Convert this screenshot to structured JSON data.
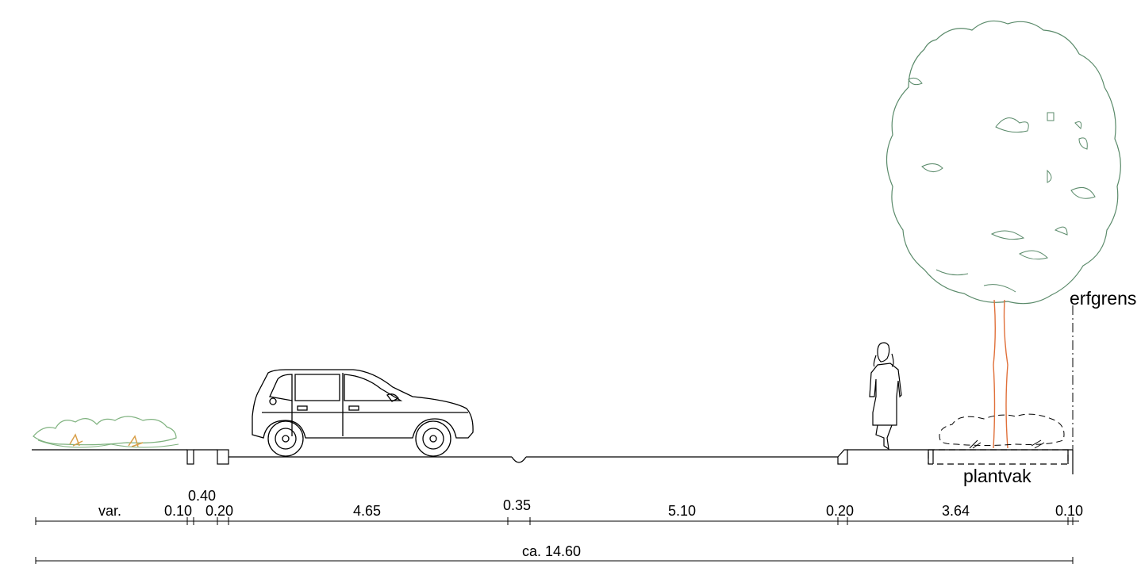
{
  "labels": {
    "erfgrens": "erfgrens",
    "plantvak": "plantvak"
  },
  "dimensions": {
    "var": "var.",
    "d010a": "0.10",
    "d040": "0.40",
    "d020a": "0.20",
    "d465": "4.65",
    "d035": "0.35",
    "d510": "5.10",
    "d020b": "0.20",
    "d364": "3.64",
    "d010b": "0.10",
    "total": "ca. 14.60"
  },
  "colors": {
    "line": "#000000",
    "tree_canopy": "#5a8a6a",
    "tree_trunk": "#e0703a",
    "hedge": "#7fb27f",
    "hedge_stems": "#d9a04a"
  }
}
